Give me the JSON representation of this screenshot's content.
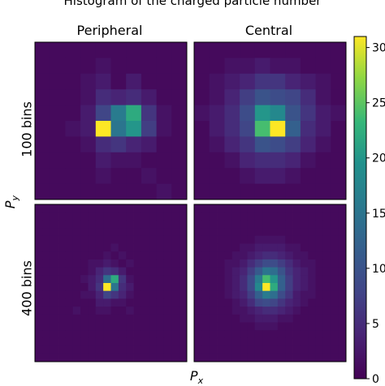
{
  "title": "Histogram of the charged particle number",
  "columns": [
    "Peripheral",
    "Central"
  ],
  "rows": [
    "100 bins",
    "400 bins"
  ],
  "xlabel": "P",
  "xlabel_sub": "x",
  "ylabel": "P",
  "ylabel_sub": "y",
  "colors": {
    "colormap": "viridis",
    "background": "#440154",
    "max": "#fde725"
  },
  "chart_data": {
    "type": "heatmap",
    "title": "Histogram of the charged particle number",
    "colorbar": {
      "min": 0,
      "max": 31,
      "ticks": [
        0,
        5,
        10,
        15,
        20,
        25,
        30
      ]
    },
    "panels": [
      {
        "row": "100 bins",
        "column": "Peripheral",
        "grid": 10,
        "values": [
          [
            1,
            1,
            1,
            1,
            1,
            1,
            1,
            1,
            1,
            1
          ],
          [
            1,
            1,
            1,
            1,
            2,
            1,
            1,
            1,
            1,
            1
          ],
          [
            1,
            1,
            1,
            2,
            3,
            1,
            3,
            1,
            1,
            1
          ],
          [
            1,
            1,
            1,
            2,
            5,
            4,
            5,
            3,
            1,
            1
          ],
          [
            1,
            1,
            1,
            3,
            8,
            16,
            22,
            6,
            2,
            1
          ],
          [
            1,
            1,
            2,
            3,
            31,
            15,
            20,
            7,
            2,
            1
          ],
          [
            1,
            1,
            1,
            2,
            5,
            6,
            4,
            3,
            1,
            1
          ],
          [
            1,
            1,
            1,
            1,
            3,
            2,
            2,
            1,
            1,
            1
          ],
          [
            1,
            1,
            1,
            1,
            2,
            1,
            1,
            2,
            1,
            1
          ],
          [
            1,
            1,
            1,
            1,
            1,
            1,
            1,
            1,
            2,
            1
          ]
        ]
      },
      {
        "row": "100 bins",
        "column": "Central",
        "grid": 10,
        "values": [
          [
            1,
            1,
            1,
            1,
            1,
            1,
            1,
            1,
            1,
            1
          ],
          [
            1,
            1,
            2,
            2,
            3,
            2,
            2,
            1,
            1,
            1
          ],
          [
            1,
            2,
            3,
            4,
            6,
            6,
            4,
            3,
            2,
            1
          ],
          [
            1,
            2,
            4,
            7,
            10,
            9,
            8,
            5,
            2,
            1
          ],
          [
            2,
            3,
            5,
            9,
            20,
            18,
            10,
            6,
            3,
            2
          ],
          [
            1,
            3,
            5,
            8,
            24,
            31,
            12,
            5,
            3,
            1
          ],
          [
            1,
            2,
            4,
            6,
            10,
            9,
            7,
            4,
            2,
            1
          ],
          [
            1,
            1,
            2,
            4,
            5,
            5,
            4,
            2,
            1,
            1
          ],
          [
            1,
            1,
            1,
            2,
            3,
            3,
            2,
            1,
            1,
            1
          ],
          [
            1,
            1,
            1,
            1,
            1,
            1,
            1,
            1,
            1,
            1
          ]
        ]
      },
      {
        "row": "400 bins",
        "column": "Peripheral",
        "grid": 20,
        "values": [
          [
            1,
            1,
            1,
            1,
            1,
            1,
            1,
            1,
            1,
            1,
            1,
            1,
            1,
            1,
            1,
            1,
            1,
            1,
            1,
            1
          ],
          [
            1,
            1,
            1,
            1,
            1,
            1,
            1,
            1,
            1,
            1,
            1,
            1,
            1,
            1,
            1,
            1,
            1,
            1,
            1,
            1
          ],
          [
            1,
            1,
            1,
            1,
            1,
            1,
            1,
            1,
            1,
            1,
            1,
            1,
            1,
            1,
            1,
            1,
            1,
            1,
            1,
            1
          ],
          [
            1,
            1,
            1,
            1,
            1,
            1,
            1,
            1,
            1,
            1,
            1,
            1,
            1,
            1,
            1,
            1,
            1,
            1,
            1,
            1
          ],
          [
            1,
            1,
            1,
            1,
            1,
            1,
            1,
            1,
            1,
            1,
            1,
            1,
            1,
            1,
            1,
            1,
            1,
            1,
            1,
            1
          ],
          [
            1,
            1,
            1,
            1,
            1,
            1,
            1,
            1,
            1,
            1,
            2,
            1,
            1,
            1,
            1,
            1,
            1,
            1,
            1,
            1
          ],
          [
            1,
            1,
            1,
            1,
            1,
            1,
            1,
            1,
            1,
            2,
            1,
            2,
            1,
            1,
            1,
            1,
            1,
            1,
            1,
            1
          ],
          [
            1,
            1,
            1,
            1,
            1,
            1,
            1,
            2,
            2,
            3,
            2,
            1,
            2,
            1,
            1,
            1,
            1,
            1,
            1,
            1
          ],
          [
            1,
            1,
            1,
            1,
            1,
            1,
            1,
            2,
            4,
            6,
            5,
            3,
            1,
            1,
            1,
            1,
            1,
            1,
            1,
            1
          ],
          [
            1,
            1,
            1,
            1,
            1,
            1,
            2,
            3,
            5,
            14,
            22,
            6,
            2,
            1,
            1,
            1,
            1,
            1,
            1,
            1
          ],
          [
            1,
            1,
            1,
            1,
            1,
            1,
            1,
            3,
            6,
            31,
            15,
            5,
            3,
            1,
            1,
            1,
            1,
            1,
            1,
            1
          ],
          [
            1,
            1,
            1,
            1,
            1,
            1,
            2,
            2,
            4,
            8,
            6,
            4,
            2,
            1,
            1,
            1,
            1,
            1,
            1,
            1
          ],
          [
            1,
            1,
            1,
            1,
            1,
            1,
            1,
            1,
            3,
            3,
            2,
            2,
            1,
            1,
            1,
            1,
            1,
            1,
            1,
            1
          ],
          [
            1,
            1,
            1,
            1,
            1,
            2,
            1,
            1,
            2,
            2,
            1,
            1,
            2,
            1,
            1,
            1,
            1,
            1,
            1,
            1
          ],
          [
            1,
            1,
            1,
            1,
            1,
            1,
            1,
            1,
            1,
            1,
            1,
            1,
            1,
            1,
            1,
            1,
            1,
            1,
            1,
            1
          ],
          [
            1,
            1,
            1,
            1,
            1,
            1,
            1,
            1,
            1,
            1,
            1,
            1,
            1,
            1,
            1,
            1,
            1,
            1,
            1,
            1
          ],
          [
            1,
            1,
            1,
            1,
            1,
            1,
            1,
            1,
            1,
            1,
            1,
            1,
            1,
            1,
            1,
            1,
            1,
            1,
            1,
            1
          ],
          [
            1,
            1,
            1,
            1,
            1,
            1,
            1,
            1,
            1,
            1,
            1,
            1,
            1,
            1,
            1,
            1,
            1,
            1,
            1,
            1
          ],
          [
            1,
            1,
            1,
            1,
            1,
            1,
            1,
            1,
            1,
            1,
            1,
            1,
            1,
            1,
            1,
            1,
            1,
            1,
            1,
            1
          ],
          [
            1,
            1,
            1,
            1,
            1,
            1,
            1,
            1,
            1,
            1,
            1,
            1,
            1,
            1,
            1,
            1,
            1,
            1,
            1,
            1
          ]
        ]
      },
      {
        "row": "400 bins",
        "column": "Central",
        "grid": 20,
        "values": [
          [
            1,
            1,
            1,
            1,
            1,
            1,
            1,
            1,
            1,
            1,
            1,
            1,
            1,
            1,
            1,
            1,
            1,
            1,
            1,
            1
          ],
          [
            1,
            1,
            1,
            1,
            1,
            1,
            1,
            1,
            1,
            1,
            1,
            1,
            1,
            1,
            1,
            1,
            1,
            1,
            1,
            1
          ],
          [
            1,
            1,
            1,
            1,
            1,
            1,
            1,
            1,
            1,
            1,
            1,
            1,
            1,
            1,
            1,
            1,
            1,
            1,
            1,
            1
          ],
          [
            1,
            1,
            1,
            1,
            1,
            1,
            1,
            1,
            1,
            1,
            1,
            1,
            1,
            1,
            1,
            1,
            1,
            1,
            1,
            1
          ],
          [
            1,
            1,
            1,
            1,
            1,
            1,
            1,
            1,
            2,
            2,
            2,
            2,
            1,
            1,
            1,
            1,
            1,
            1,
            1,
            1
          ],
          [
            1,
            1,
            1,
            1,
            1,
            1,
            2,
            2,
            3,
            3,
            3,
            3,
            2,
            2,
            1,
            1,
            1,
            1,
            1,
            1
          ],
          [
            1,
            1,
            1,
            1,
            1,
            2,
            2,
            3,
            4,
            5,
            5,
            4,
            3,
            2,
            2,
            1,
            1,
            1,
            1,
            1
          ],
          [
            1,
            1,
            1,
            1,
            2,
            2,
            3,
            5,
            7,
            9,
            9,
            7,
            5,
            3,
            2,
            2,
            1,
            1,
            1,
            1
          ],
          [
            1,
            1,
            1,
            1,
            2,
            3,
            4,
            7,
            11,
            15,
            14,
            10,
            6,
            4,
            3,
            2,
            1,
            1,
            1,
            1
          ],
          [
            1,
            1,
            1,
            1,
            2,
            3,
            5,
            9,
            16,
            24,
            20,
            12,
            7,
            4,
            3,
            2,
            1,
            1,
            1,
            1
          ],
          [
            1,
            1,
            1,
            1,
            2,
            3,
            5,
            9,
            18,
            31,
            22,
            12,
            7,
            4,
            3,
            2,
            1,
            1,
            1,
            1
          ],
          [
            1,
            1,
            1,
            1,
            2,
            3,
            4,
            7,
            12,
            16,
            14,
            9,
            6,
            3,
            2,
            2,
            1,
            1,
            1,
            1
          ],
          [
            1,
            1,
            1,
            1,
            1,
            2,
            3,
            5,
            8,
            9,
            8,
            6,
            4,
            3,
            2,
            1,
            1,
            1,
            1,
            1
          ],
          [
            1,
            1,
            1,
            1,
            1,
            2,
            2,
            3,
            4,
            5,
            5,
            4,
            3,
            2,
            1,
            1,
            1,
            1,
            1,
            1
          ],
          [
            1,
            1,
            1,
            1,
            1,
            1,
            2,
            2,
            3,
            3,
            3,
            2,
            2,
            1,
            1,
            1,
            1,
            1,
            1,
            1
          ],
          [
            1,
            1,
            1,
            1,
            1,
            1,
            1,
            1,
            2,
            2,
            2,
            1,
            1,
            1,
            1,
            1,
            1,
            1,
            1,
            1
          ],
          [
            1,
            1,
            1,
            1,
            1,
            1,
            1,
            1,
            1,
            1,
            1,
            1,
            1,
            1,
            1,
            1,
            1,
            1,
            1,
            1
          ],
          [
            1,
            1,
            1,
            1,
            1,
            1,
            1,
            1,
            1,
            1,
            1,
            1,
            1,
            1,
            1,
            1,
            1,
            1,
            1,
            1
          ],
          [
            1,
            1,
            1,
            1,
            1,
            1,
            1,
            1,
            1,
            1,
            1,
            1,
            1,
            1,
            1,
            1,
            1,
            1,
            1,
            1
          ],
          [
            1,
            1,
            1,
            1,
            1,
            1,
            1,
            1,
            1,
            1,
            1,
            1,
            1,
            1,
            1,
            1,
            1,
            1,
            1,
            1
          ]
        ]
      }
    ]
  }
}
